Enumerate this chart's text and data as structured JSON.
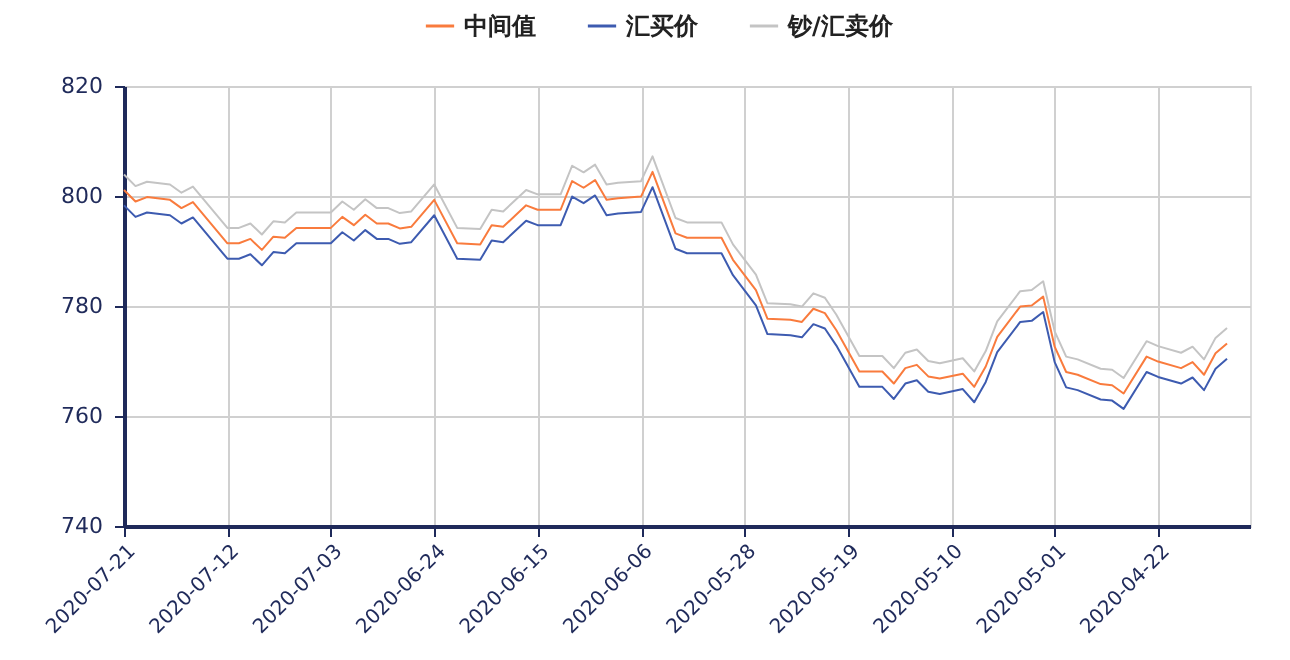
{
  "chart_data": {
    "type": "line",
    "legend": "top",
    "grid": true,
    "line_style": "solid",
    "marker": "none",
    "xlim": [
      "2020-07-21",
      "2020-04-14"
    ],
    "xticks": [
      "2020-07-21",
      "2020-07-12",
      "2020-07-03",
      "2020-06-24",
      "2020-06-15",
      "2020-06-06",
      "2020-05-28",
      "2020-05-19",
      "2020-05-10",
      "2020-05-01",
      "2020-04-22"
    ],
    "ylim": [
      740,
      820
    ],
    "yticks": [
      740,
      760,
      780,
      800,
      820
    ],
    "x": [
      "2020-07-21",
      "2020-07-20",
      "2020-07-19",
      "2020-07-17",
      "2020-07-16",
      "2020-07-15",
      "2020-07-12",
      "2020-07-11",
      "2020-07-10",
      "2020-07-09",
      "2020-07-08",
      "2020-07-07",
      "2020-07-06",
      "2020-07-03",
      "2020-07-02",
      "2020-07-01",
      "2020-06-30",
      "2020-06-29",
      "2020-06-28",
      "2020-06-27",
      "2020-06-26",
      "2020-06-24",
      "2020-06-22",
      "2020-06-20",
      "2020-06-19",
      "2020-06-18",
      "2020-06-16",
      "2020-06-15",
      "2020-06-13",
      "2020-06-12",
      "2020-06-11",
      "2020-06-10",
      "2020-06-09",
      "2020-06-08",
      "2020-06-06",
      "2020-06-05",
      "2020-06-03",
      "2020-06-02",
      "2020-05-30",
      "2020-05-29",
      "2020-05-27",
      "2020-05-26",
      "2020-05-24",
      "2020-05-23",
      "2020-05-22",
      "2020-05-21",
      "2020-05-20",
      "2020-05-18",
      "2020-05-16",
      "2020-05-15",
      "2020-05-14",
      "2020-05-13",
      "2020-05-12",
      "2020-05-11",
      "2020-05-09",
      "2020-05-08",
      "2020-05-07",
      "2020-05-06",
      "2020-05-04",
      "2020-05-03",
      "2020-05-02",
      "2020-05-01",
      "2020-04-30",
      "2020-04-29",
      "2020-04-27",
      "2020-04-26",
      "2020-04-25",
      "2020-04-23",
      "2020-04-22",
      "2020-04-20",
      "2020-04-19",
      "2020-04-18",
      "2020-04-17",
      "2020-04-16"
    ],
    "series": [
      {
        "name": "中间值",
        "color": "#f97b3d",
        "values": [
          801.1,
          799.0,
          799.8,
          799.3,
          797.8,
          798.9,
          791.4,
          791.4,
          792.2,
          790.2,
          792.6,
          792.4,
          794.2,
          794.2,
          796.2,
          794.7,
          796.6,
          795.0,
          795.0,
          794.1,
          794.4,
          799.3,
          791.4,
          791.2,
          794.7,
          794.4,
          798.3,
          797.5,
          797.5,
          802.7,
          801.5,
          802.9,
          799.3,
          799.6,
          799.9,
          804.4,
          793.2,
          792.4,
          792.4,
          788.4,
          782.9,
          777.7,
          777.5,
          777.1,
          779.5,
          778.7,
          775.6,
          768.1,
          768.1,
          765.9,
          768.7,
          769.3,
          767.2,
          766.8,
          767.7,
          765.3,
          769.0,
          774.4,
          779.9,
          780.1,
          781.7,
          772.6,
          768.0,
          767.5,
          765.8,
          765.6,
          764.1,
          770.8,
          769.9,
          768.7,
          769.8,
          767.5,
          771.4,
          773.2
        ]
      },
      {
        "name": "汇买价",
        "color": "#3d5bb0",
        "values": [
          798.3,
          796.2,
          797.0,
          796.5,
          795.0,
          796.1,
          788.6,
          788.6,
          789.4,
          787.4,
          789.8,
          789.6,
          791.4,
          791.4,
          793.4,
          791.9,
          793.8,
          792.2,
          792.2,
          791.3,
          791.6,
          796.5,
          788.6,
          788.4,
          791.9,
          791.6,
          795.5,
          794.7,
          794.7,
          799.9,
          798.7,
          800.1,
          796.5,
          796.8,
          797.1,
          801.6,
          790.4,
          789.6,
          789.6,
          785.6,
          780.1,
          774.9,
          774.7,
          774.3,
          776.7,
          775.9,
          772.8,
          765.3,
          765.3,
          763.1,
          765.9,
          766.5,
          764.4,
          764.0,
          764.9,
          762.5,
          766.2,
          771.6,
          777.1,
          777.3,
          778.9,
          769.8,
          765.2,
          764.7,
          763.0,
          762.8,
          761.3,
          768.0,
          767.1,
          765.9,
          767.0,
          764.7,
          768.6,
          770.4
        ]
      },
      {
        "name": "钞/汇卖价",
        "color": "#c4c4c4",
        "values": [
          803.9,
          801.8,
          802.6,
          802.1,
          800.6,
          801.7,
          794.2,
          794.2,
          795.0,
          793.0,
          795.4,
          795.2,
          797.0,
          797.0,
          799.0,
          797.5,
          799.4,
          797.8,
          797.8,
          796.9,
          797.2,
          802.1,
          794.2,
          794.0,
          797.5,
          797.2,
          801.1,
          800.3,
          800.3,
          805.5,
          804.3,
          805.7,
          802.1,
          802.4,
          802.7,
          807.2,
          796.0,
          795.2,
          795.2,
          791.2,
          785.7,
          780.5,
          780.3,
          779.9,
          782.3,
          781.5,
          778.4,
          770.9,
          770.9,
          768.7,
          771.5,
          772.1,
          770.0,
          769.6,
          770.5,
          768.1,
          771.8,
          777.2,
          782.7,
          782.9,
          784.5,
          775.4,
          770.8,
          770.3,
          768.6,
          768.4,
          766.9,
          773.6,
          772.7,
          771.5,
          772.6,
          770.3,
          774.2,
          776.0
        ]
      }
    ]
  }
}
